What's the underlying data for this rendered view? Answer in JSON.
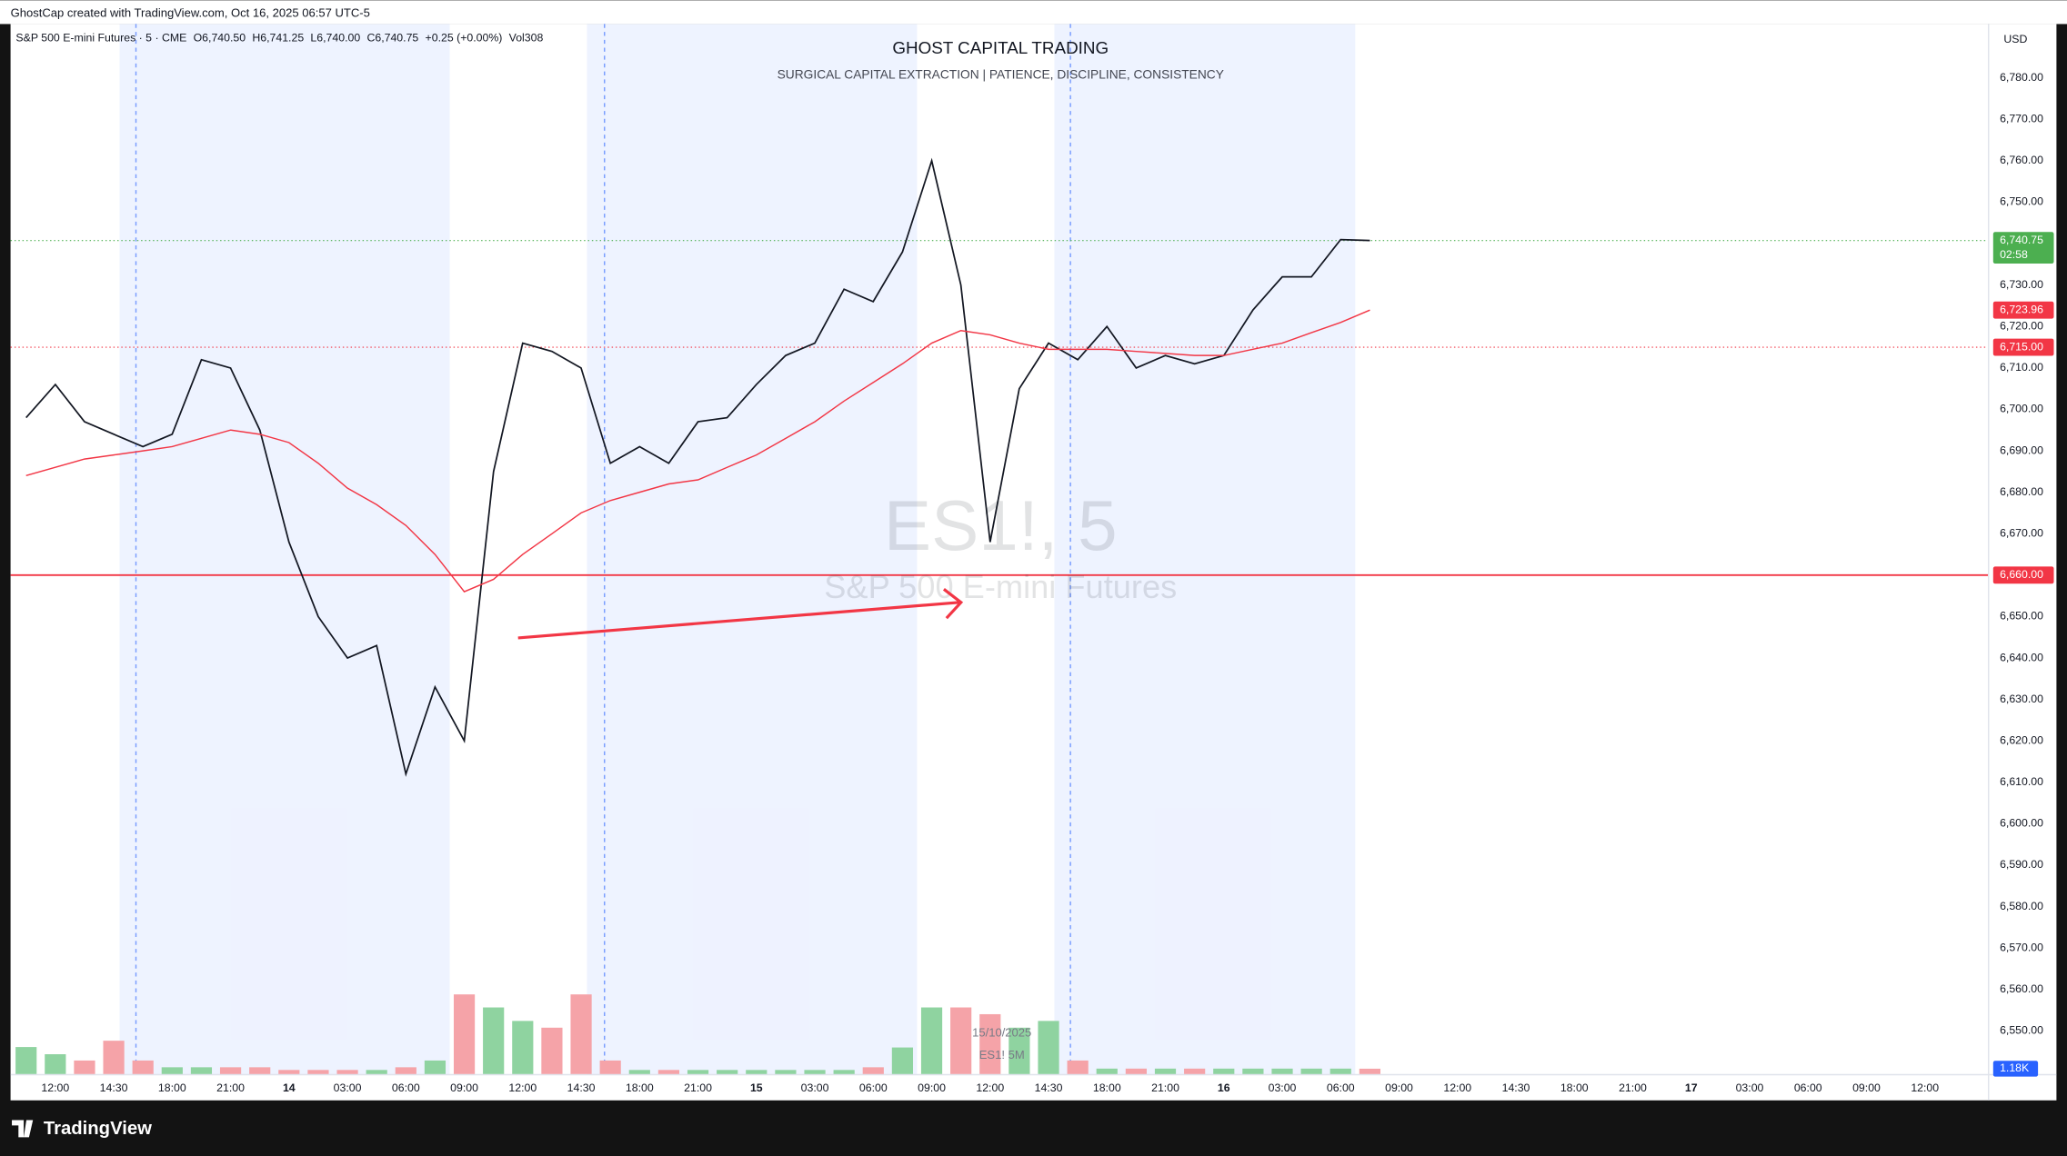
{
  "chart_data": {
    "type": "line",
    "header": "GhostCap created with TradingView.com, Oct 16, 2025 06:57 UTC-5",
    "legend": {
      "symbol": "S&P 500 E-mini Futures · 5 · CME",
      "open": "O6,740.50",
      "high": "H6,741.25",
      "low": "L6,740.00",
      "close": "C6,740.75",
      "change": "+0.25 (+0.00%)",
      "volume": "Vol308"
    },
    "title": "GHOST CAPITAL TRADING",
    "subtitle": "SURGICAL CAPITAL EXTRACTION |  PATIENCE, DISCIPLINE, CONSISTENCY",
    "watermark": "ES1!, 5",
    "watermark_subtitle": "S&P 500 E-mini Futures",
    "currency": "USD",
    "marker_date": "15/10/2025",
    "marker_symbol": "ES1! 5M",
    "footer": "TradingView",
    "categories": [
      null,
      "12:00",
      null,
      "14:30",
      null,
      "18:00",
      null,
      "21:00",
      null,
      "14",
      null,
      "03:00",
      null,
      "06:00",
      null,
      "09:00",
      null,
      "12:00",
      null,
      "14:30",
      null,
      "18:00",
      null,
      "21:00",
      null,
      "15",
      null,
      "03:00",
      null,
      "06:00",
      null,
      "09:00",
      null,
      "12:00",
      null,
      "14:30",
      null,
      "18:00",
      null,
      "21:00",
      null,
      "16",
      null,
      "03:00",
      null,
      "06:00",
      null,
      "09:00",
      null,
      "12:00",
      null,
      "14:30",
      null,
      "18:00",
      null,
      "21:00",
      null,
      "17",
      null,
      "03:00",
      null,
      "06:00",
      null,
      "09:00",
      null,
      "12:00"
    ],
    "series": [
      {
        "name": "Price",
        "color": "#131722",
        "values": [
          6698,
          6706,
          6697,
          6694,
          6691,
          6694,
          6712,
          6710,
          6695,
          6668,
          6650,
          6640,
          6643,
          6612,
          6633,
          6620,
          6685,
          6716,
          6714,
          6710,
          6687,
          6691,
          6687,
          6697,
          6698,
          6706,
          6713,
          6716,
          6729,
          6726,
          6738,
          6760,
          6730,
          6668,
          6705,
          6716,
          6712,
          6720,
          6710,
          6713,
          6711,
          6713,
          6724,
          6732,
          6732,
          6741,
          6740.75,
          null,
          null,
          null,
          null,
          null,
          null,
          null,
          null,
          null,
          null,
          null,
          null,
          null,
          null,
          null,
          null,
          null,
          null,
          null
        ]
      },
      {
        "name": "MA",
        "color": "#f23645",
        "values": [
          6684,
          6686,
          6688,
          6689,
          6690,
          6691,
          6693,
          6695,
          6694,
          6692,
          6687,
          6681,
          6677,
          6672,
          6665,
          6656,
          6659,
          6665,
          6670,
          6675,
          6678,
          6680,
          6682,
          6683,
          6686,
          6689,
          6693,
          6697,
          6702,
          6706.5,
          6711,
          6716,
          6719,
          6718,
          6716,
          6714.5,
          6714.5,
          6714.5,
          6714,
          6713.5,
          6713,
          6713,
          6714.5,
          6716,
          6718.5,
          6721,
          6723.96,
          null,
          null,
          null,
          null,
          null,
          null,
          null,
          null,
          null,
          null,
          null,
          null,
          null,
          null,
          null,
          null,
          null,
          null,
          null
        ]
      }
    ],
    "volume": {
      "up_color": "#8fd3a0",
      "down_color": "#f5a3a8",
      "values": [
        6,
        4.4,
        3,
        7.4,
        3,
        1.5,
        1.5,
        1.5,
        1.5,
        0.9,
        0.9,
        0.9,
        0.9,
        1.5,
        3,
        17.7,
        14.8,
        11.8,
        10.3,
        17.7,
        3,
        0.9,
        0.9,
        0.9,
        0.9,
        0.9,
        0.9,
        0.9,
        0.9,
        1.5,
        5.9,
        14.8,
        14.8,
        13.3,
        10.3,
        11.8,
        3,
        1.2,
        1.2,
        1.2,
        1.2,
        1.2,
        1.2,
        1.2,
        1.2,
        1.2,
        1.18,
        null,
        null,
        null,
        null,
        null,
        null,
        null,
        null,
        null,
        null,
        null,
        null,
        null,
        null,
        null,
        null,
        null,
        null,
        null
      ],
      "last_label": "1.18K",
      "last_color": "#2962ff",
      "y2lim": [
        0,
        58
      ]
    },
    "levels": [
      {
        "value": 6660,
        "label": "6,660.00",
        "color": "#f23645",
        "style": "solid"
      },
      {
        "value": 6715,
        "label": "6,715.00",
        "color": "#f23645",
        "style": "dotted"
      },
      {
        "value": 6723.96,
        "label": "6,723.96",
        "color": "#f23645",
        "style": "none"
      },
      {
        "value": 6740.75,
        "label": "6,740.75",
        "color": "#4caf50",
        "style": "dotted",
        "countdown": "02:58"
      }
    ],
    "ylim": [
      6539.6,
      6793
    ],
    "yticks": [
      {
        "value": 6550,
        "label": "6,550.00"
      },
      {
        "value": 6560,
        "label": "6,560.00"
      },
      {
        "value": 6570,
        "label": "6,570.00"
      },
      {
        "value": 6580,
        "label": "6,580.00"
      },
      {
        "value": 6590,
        "label": "6,590.00"
      },
      {
        "value": 6600,
        "label": "6,600.00"
      },
      {
        "value": 6610,
        "label": "6,610.00"
      },
      {
        "value": 6620,
        "label": "6,620.00"
      },
      {
        "value": 6630,
        "label": "6,630.00"
      },
      {
        "value": 6640,
        "label": "6,640.00"
      },
      {
        "value": 6650,
        "label": "6,650.00"
      },
      {
        "value": 6660,
        "label": "6,660.00"
      },
      {
        "value": 6670,
        "label": "6,670.00"
      },
      {
        "value": 6680,
        "label": "6,680.00"
      },
      {
        "value": 6690,
        "label": "6,690.00"
      },
      {
        "value": 6700,
        "label": "6,700.00"
      },
      {
        "value": 6710,
        "label": "6,710.00"
      },
      {
        "value": 6720,
        "label": "6,720.00"
      },
      {
        "value": 6730,
        "label": "6,730.00"
      },
      {
        "value": 6740,
        "label": "6,740.00"
      },
      {
        "value": 6750,
        "label": "6,750.00"
      },
      {
        "value": 6760,
        "label": "6,760.00"
      },
      {
        "value": 6770,
        "label": "6,770.00"
      },
      {
        "value": 6780,
        "label": "6,780.00"
      }
    ],
    "grid": false
  }
}
